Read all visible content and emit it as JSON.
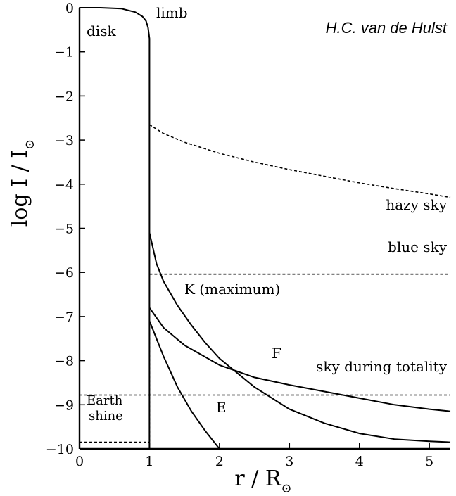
{
  "chart_data": {
    "type": "line",
    "credit": "H.C. van de Hulst",
    "xlabel": {
      "main": "r / R",
      "sub": "⊙"
    },
    "ylabel": {
      "main": "log  I / I",
      "sub": "⊙"
    },
    "xlim": [
      0,
      5.3
    ],
    "ylim": [
      -10,
      0
    ],
    "x_ticks": [
      0,
      1,
      2,
      3,
      4,
      5
    ],
    "y_ticks": [
      0,
      -1,
      -2,
      -3,
      -4,
      -5,
      -6,
      -7,
      -8,
      -9,
      -10
    ],
    "x_tick_labels": [
      "0",
      "1",
      "2",
      "3",
      "4",
      "5"
    ],
    "y_tick_labels": [
      "0",
      "−1",
      "−2",
      "−3",
      "−4",
      "−5",
      "−6",
      "−7",
      "−8",
      "−9",
      "−10"
    ],
    "annotations": {
      "disk": "disk",
      "limb": "limb",
      "hazy_sky": "hazy sky",
      "blue_sky": "blue sky",
      "k_maximum": "K (maximum)",
      "f": "F",
      "sky_totality": "sky during totality",
      "e": "E",
      "earth_line1": "Earth",
      "earth_line2": "shine"
    },
    "series": [
      {
        "name": "disk",
        "style": "solid",
        "points": [
          [
            0,
            -10
          ],
          [
            0,
            0
          ],
          [
            0.3,
            0
          ],
          [
            0.6,
            -0.02
          ],
          [
            0.8,
            -0.1
          ],
          [
            0.9,
            -0.2
          ],
          [
            0.95,
            -0.3
          ],
          [
            0.98,
            -0.45
          ],
          [
            1.0,
            -0.7
          ],
          [
            1.0,
            -10
          ]
        ]
      },
      {
        "name": "hazy sky",
        "style": "dashed",
        "points": [
          [
            1.0,
            -2.65
          ],
          [
            1.2,
            -2.85
          ],
          [
            1.5,
            -3.05
          ],
          [
            2.0,
            -3.3
          ],
          [
            2.5,
            -3.5
          ],
          [
            3.0,
            -3.67
          ],
          [
            3.5,
            -3.82
          ],
          [
            4.0,
            -3.97
          ],
          [
            4.5,
            -4.1
          ],
          [
            5.0,
            -4.22
          ],
          [
            5.3,
            -4.3
          ]
        ]
      },
      {
        "name": "blue sky",
        "style": "dashed",
        "points": [
          [
            1.0,
            -6.04
          ],
          [
            5.3,
            -6.04
          ]
        ]
      },
      {
        "name": "sky during totality",
        "style": "dashed",
        "points": [
          [
            0,
            -8.78
          ],
          [
            5.3,
            -8.78
          ]
        ]
      },
      {
        "name": "Earth shine",
        "style": "dashed",
        "points": [
          [
            0,
            -9.85
          ],
          [
            1.0,
            -9.85
          ]
        ]
      },
      {
        "name": "limb drop",
        "style": "dashed",
        "points": [
          [
            1.0,
            -7.1
          ],
          [
            1.0,
            -10
          ]
        ]
      },
      {
        "name": "K (maximum)",
        "style": "solid",
        "points": [
          [
            1.0,
            -5.1
          ],
          [
            1.1,
            -5.8
          ],
          [
            1.2,
            -6.2
          ],
          [
            1.4,
            -6.75
          ],
          [
            1.6,
            -7.2
          ],
          [
            1.8,
            -7.6
          ],
          [
            2.0,
            -7.95
          ],
          [
            2.5,
            -8.6
          ],
          [
            3.0,
            -9.1
          ],
          [
            3.5,
            -9.42
          ],
          [
            4.0,
            -9.65
          ],
          [
            4.5,
            -9.78
          ],
          [
            5.0,
            -9.83
          ],
          [
            5.3,
            -9.85
          ]
        ]
      },
      {
        "name": "F",
        "style": "solid",
        "points": [
          [
            1.0,
            -6.8
          ],
          [
            1.2,
            -7.25
          ],
          [
            1.5,
            -7.65
          ],
          [
            2.0,
            -8.1
          ],
          [
            2.5,
            -8.38
          ],
          [
            3.0,
            -8.55
          ],
          [
            3.5,
            -8.7
          ],
          [
            4.0,
            -8.85
          ],
          [
            4.5,
            -9.0
          ],
          [
            5.0,
            -9.1
          ],
          [
            5.3,
            -9.15
          ]
        ]
      },
      {
        "name": "E",
        "style": "solid",
        "points": [
          [
            1.0,
            -7.1
          ],
          [
            1.2,
            -7.9
          ],
          [
            1.4,
            -8.6
          ],
          [
            1.6,
            -9.15
          ],
          [
            1.8,
            -9.6
          ],
          [
            2.0,
            -10.0
          ]
        ]
      }
    ]
  }
}
